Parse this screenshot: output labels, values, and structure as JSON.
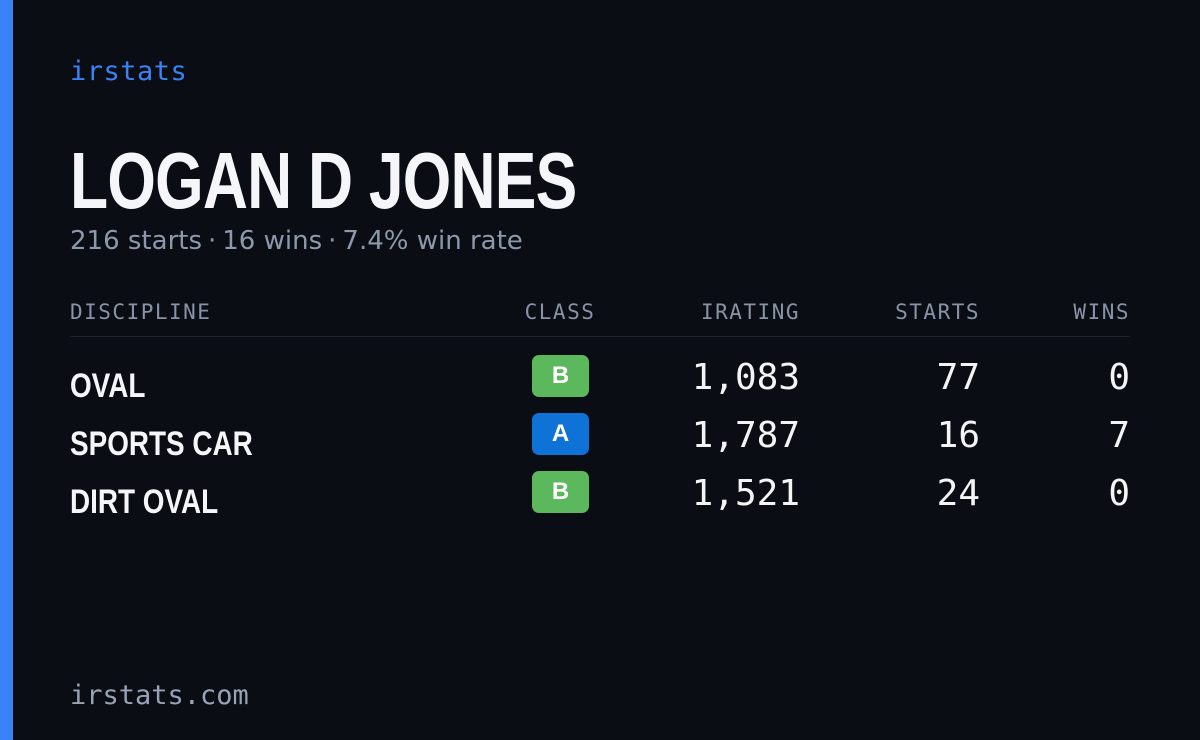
{
  "brand": "irstats",
  "driver": {
    "name": "LOGAN D JONES",
    "starts_text": "216 starts",
    "wins_text": "16 wins",
    "winrate_text": "7.4% win rate",
    "separator": "·"
  },
  "table": {
    "headers": {
      "discipline": "DISCIPLINE",
      "class": "CLASS",
      "irating": "IRATING",
      "starts": "STARTS",
      "wins": "WINS"
    },
    "rows": [
      {
        "discipline": "OVAL",
        "class": "B",
        "class_color": "#5cb85c",
        "irating": "1,083",
        "starts": "77",
        "wins": "0"
      },
      {
        "discipline": "SPORTS CAR",
        "class": "A",
        "class_color": "#0f72d6",
        "irating": "1,787",
        "starts": "16",
        "wins": "7"
      },
      {
        "discipline": "DIRT OVAL",
        "class": "B",
        "class_color": "#5cb85c",
        "irating": "1,521",
        "starts": "24",
        "wins": "0"
      }
    ]
  },
  "footer": "irstats.com",
  "colors": {
    "background": "#0a0d14",
    "accent": "#3b82f6",
    "muted_text": "#8f98ab"
  }
}
